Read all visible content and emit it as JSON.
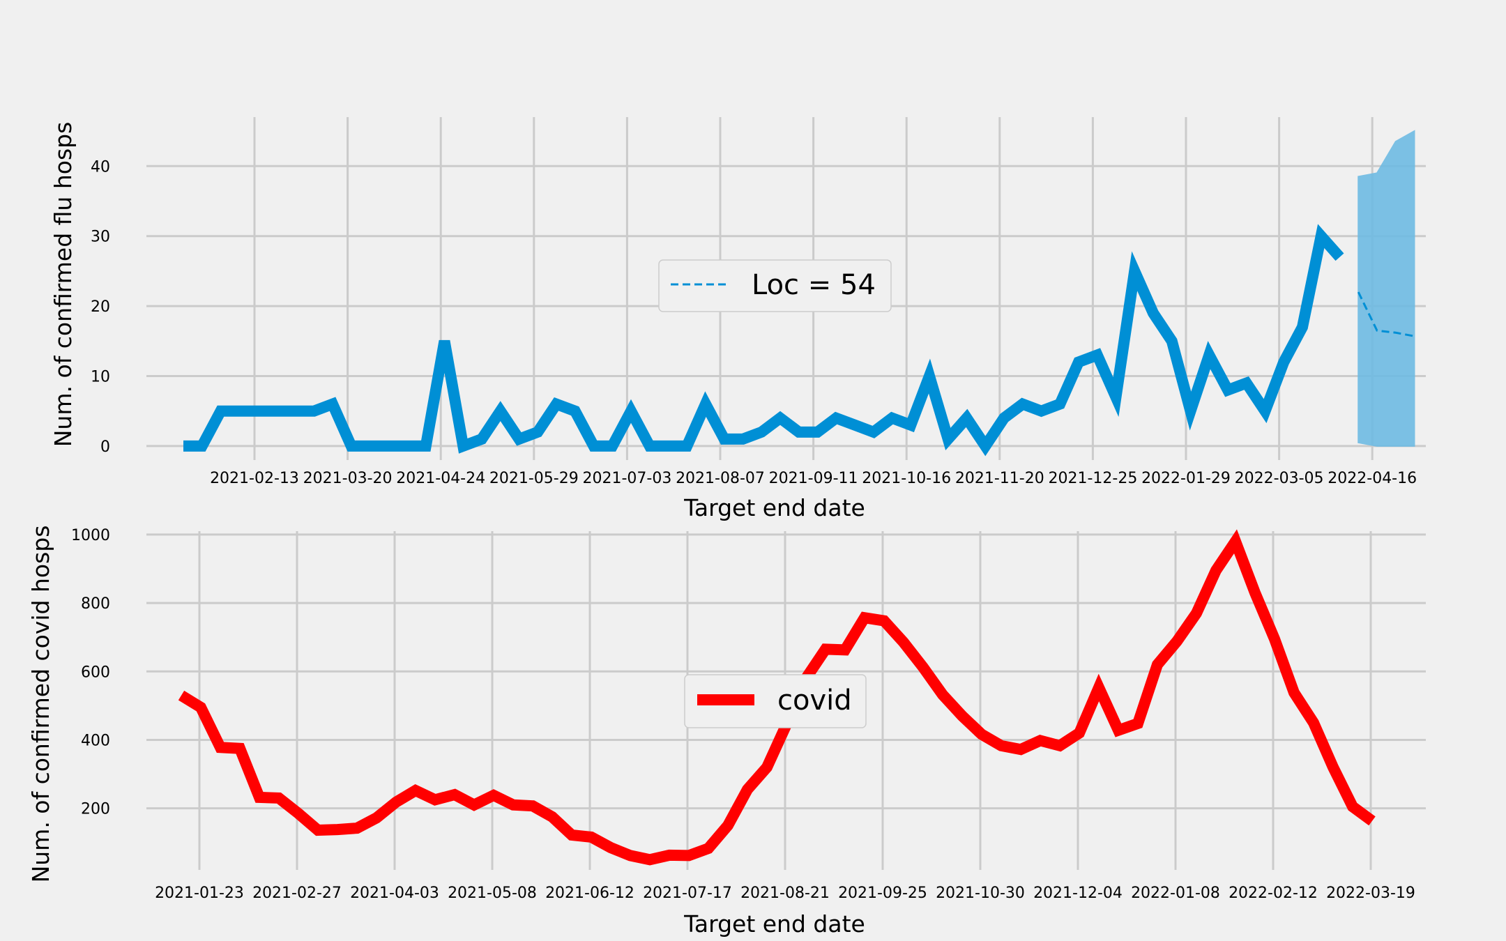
{
  "chart_data": [
    {
      "type": "line",
      "xlabel": "Target end date",
      "ylabel": "Num. of confirmed flu hosps",
      "ylim": [
        -2,
        47
      ],
      "yticks": [
        0,
        10,
        20,
        30,
        40
      ],
      "xtick_labels": [
        "2021-02-13",
        "2021-03-20",
        "2021-04-24",
        "2021-05-29",
        "2021-07-03",
        "2021-08-07",
        "2021-09-11",
        "2021-10-16",
        "2021-11-20",
        "2021-12-25",
        "2022-01-29",
        "2022-03-05",
        "2022-04-16"
      ],
      "grid": true,
      "legend": {
        "placement": "center",
        "label": "Loc = 54"
      },
      "colors": {
        "series": "#008fd5",
        "band": "#6fbbe3"
      },
      "series": [
        {
          "values": [
            0,
            0,
            5,
            5,
            5,
            5,
            5,
            5,
            6,
            0,
            0,
            0,
            0,
            0,
            15,
            0,
            1,
            5,
            1,
            2,
            6,
            5,
            0,
            0,
            5,
            0,
            0,
            0,
            6,
            1,
            1,
            2,
            4,
            2,
            2,
            4,
            3,
            2,
            4,
            3,
            10,
            1,
            4,
            0,
            4,
            6,
            5,
            6,
            12,
            13,
            7,
            25,
            19,
            15,
            5,
            13,
            8,
            9,
            5,
            12,
            17,
            30,
            27
          ]
        },
        {
          "style": "dashed",
          "values": [
            22,
            16.5,
            16.2,
            15.7
          ],
          "band_lower": [
            0.5,
            0,
            0,
            0
          ],
          "band_upper": [
            38.5,
            39,
            43.5,
            45
          ]
        }
      ]
    },
    {
      "type": "line",
      "xlabel": "Target end date",
      "ylabel": "Num. of confirmed covid hosps",
      "ylim": [
        20,
        1010
      ],
      "yticks": [
        200,
        400,
        600,
        800,
        1000
      ],
      "xtick_labels": [
        "2021-01-23",
        "2021-02-27",
        "2021-04-03",
        "2021-05-08",
        "2021-06-12",
        "2021-07-17",
        "2021-08-21",
        "2021-09-25",
        "2021-10-30",
        "2021-12-04",
        "2022-01-08",
        "2022-02-12",
        "2022-03-19"
      ],
      "grid": true,
      "legend": {
        "placement": "center",
        "label": "covid"
      },
      "colors": {
        "series": "#ff0000"
      },
      "series": [
        {
          "name": "covid",
          "values": [
            530,
            495,
            378,
            375,
            232,
            230,
            185,
            136,
            138,
            142,
            172,
            218,
            252,
            225,
            240,
            210,
            238,
            210,
            207,
            175,
            122,
            116,
            85,
            62,
            50,
            63,
            62,
            83,
            150,
            255,
            320,
            445,
            580,
            665,
            663,
            757,
            748,
            685,
            612,
            532,
            470,
            416,
            383,
            372,
            398,
            383,
            420,
            553,
            428,
            448,
            620,
            688,
            770,
            895,
            980,
            830,
            695,
            538,
            450,
            320,
            205,
            163
          ]
        }
      ]
    }
  ]
}
